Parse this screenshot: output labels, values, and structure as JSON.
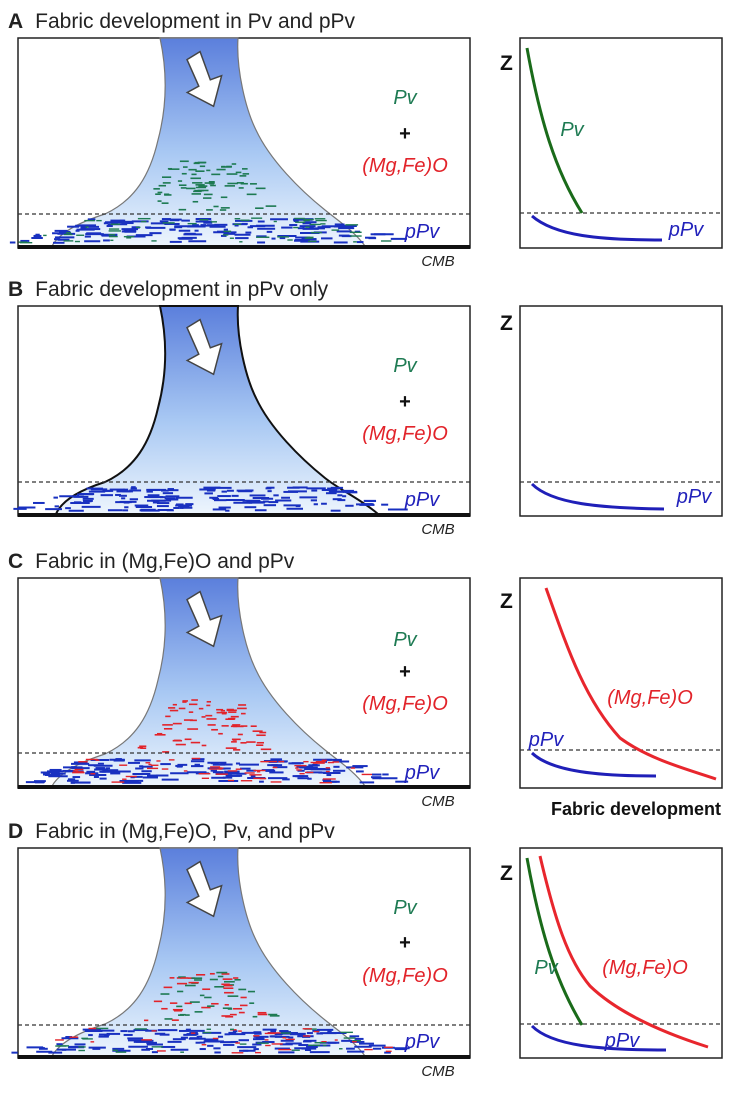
{
  "colors": {
    "pv": "#1d7a52",
    "mgfeo": "#e2232a",
    "ppv": "#2222bb",
    "pv_curve": "#1a6b1a",
    "mgfeo_curve": "#e8262d",
    "ppv_curve": "#1f1fb8",
    "plume_top": "#5b7fdc",
    "plume_bottom": "#e9f3fd",
    "fabric_blue": "#1830c0"
  },
  "labels": {
    "pv": "Pv",
    "plus": "+",
    "mgfeo": "(Mg,Fe)O",
    "ppv": "pPv",
    "cmb": "CMB",
    "z_axis": "Z",
    "fabric_development": "Fabric development"
  },
  "panels": [
    {
      "letter": "A",
      "title": "Fabric development in Pv and pPv",
      "plume_outline": "#777777",
      "fabric_minerals": [
        "Pv",
        "pPv"
      ],
      "curves": [
        "Pv",
        "pPv"
      ]
    },
    {
      "letter": "B",
      "title": "Fabric development in pPv only",
      "plume_outline": "#111111",
      "fabric_minerals": [
        "pPv"
      ],
      "curves": [
        "pPv"
      ]
    },
    {
      "letter": "C",
      "title": "Fabric in (Mg,Fe)O and pPv",
      "plume_outline": "#777777",
      "fabric_minerals": [
        "(Mg,Fe)O",
        "pPv"
      ],
      "curves": [
        "(Mg,Fe)O",
        "pPv"
      ]
    },
    {
      "letter": "D",
      "title": "Fabric in (Mg,Fe)O, Pv, and pPv",
      "plume_outline": "#777777",
      "fabric_minerals": [
        "(Mg,Fe)O",
        "Pv",
        "pPv"
      ],
      "curves": [
        "Pv",
        "(Mg,Fe)O",
        "pPv"
      ]
    }
  ]
}
